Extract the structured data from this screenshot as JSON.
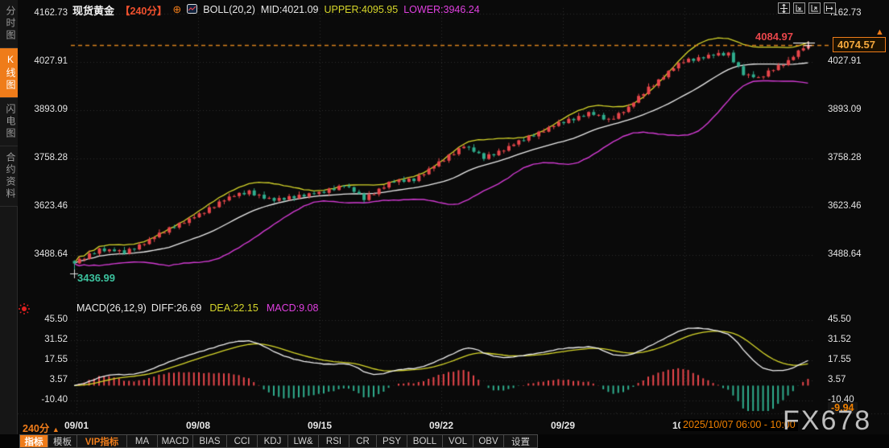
{
  "colors": {
    "up": "#e8464b",
    "down": "#2fae8e",
    "boll_up": "#d6d62a",
    "boll_mid": "#ececec",
    "boll_low": "#d43bd4",
    "grid": "#2f2f2f",
    "accent": "#ef7c1a",
    "dif_line": "#f0f0f0",
    "dea_line": "#d6d62a",
    "price_line": "#d9821e"
  },
  "sidebar": {
    "items": [
      {
        "label": "分时图",
        "name": "sidebar-tab-timeshare",
        "active": false
      },
      {
        "label": "K线图",
        "name": "sidebar-tab-kline",
        "active": true
      },
      {
        "label": "闪电图",
        "name": "sidebar-tab-lightning",
        "active": false
      },
      {
        "label": "合约资料",
        "name": "sidebar-tab-contract-info",
        "active": false
      }
    ]
  },
  "header": {
    "symbol": "现货黄金",
    "period": "【240分】",
    "add_icon": "⊕",
    "boll_label": "BOLL(20,2)",
    "mid": "MID:4021.09",
    "upper": "UPPER:4095.95",
    "lower": "LOWER:3946.24"
  },
  "markers": {
    "high": "4084.97",
    "low": "3436.99",
    "last_price": "4074.57",
    "price_arrow": "▲",
    "macd_last": "-9.94"
  },
  "macd_header": {
    "label": "MACD(26,12,9)",
    "diff": "DIFF:26.69",
    "dea": "DEA:22.15",
    "macd": "MACD:9.08"
  },
  "x_axis": {
    "period_label": "240分",
    "period_arrow": "▲",
    "labels": [
      "09/01",
      "09/08",
      "09/15",
      "09/22",
      "09/29",
      "10/0"
    ],
    "tooltip": "2025/10/07 06:00 - 10:00"
  },
  "watermark": "FX678",
  "toolbar": {
    "items": [
      {
        "label": "指标",
        "name": "toolbar-item-indicator",
        "style": "active",
        "width": 36
      },
      {
        "label": "模板",
        "name": "toolbar-item-template",
        "style": "plain",
        "width": 36
      },
      {
        "label": "VIP指标",
        "name": "toolbar-item-vip",
        "style": "vip",
        "width": 62
      },
      {
        "label": "MA",
        "name": "toolbar-item-ma",
        "style": "plain",
        "width": 38
      },
      {
        "label": "MACD",
        "name": "toolbar-item-macd",
        "style": "plain",
        "width": 44
      },
      {
        "label": "BIAS",
        "name": "toolbar-item-bias",
        "style": "plain",
        "width": 42
      },
      {
        "label": "CCI",
        "name": "toolbar-item-cci",
        "style": "plain",
        "width": 38
      },
      {
        "label": "KDJ",
        "name": "toolbar-item-kdj",
        "style": "plain",
        "width": 38
      },
      {
        "label": "LW&",
        "name": "toolbar-item-lwr",
        "style": "plain",
        "width": 38
      },
      {
        "label": "RSI",
        "name": "toolbar-item-rsi",
        "style": "plain",
        "width": 38
      },
      {
        "label": "CR",
        "name": "toolbar-item-cr",
        "style": "plain",
        "width": 34
      },
      {
        "label": "PSY",
        "name": "toolbar-item-psy",
        "style": "plain",
        "width": 38
      },
      {
        "label": "BOLL",
        "name": "toolbar-item-boll",
        "style": "plain",
        "width": 44
      },
      {
        "label": "VOL",
        "name": "toolbar-item-vol",
        "style": "plain",
        "width": 38
      },
      {
        "label": "OBV",
        "name": "toolbar-item-obv",
        "style": "plain",
        "width": 38
      },
      {
        "label": "设置",
        "name": "toolbar-item-settings",
        "style": "plain",
        "width": 42
      }
    ]
  },
  "chart_data": {
    "type": "candlestick",
    "title": "现货黄金 240分 K线图 + BOLL(20,2), 副图 MACD(26,12,9)",
    "y_axis": {
      "labels": [
        "4162.73",
        "4027.91",
        "3893.09",
        "3758.28",
        "3623.46",
        "3488.64"
      ],
      "top_value": 4162.73,
      "step_value": 134.82
    },
    "x_axis": {
      "labels": [
        "09/01",
        "09/08",
        "09/15",
        "09/22",
        "09/29",
        "10/0"
      ]
    },
    "key_values": {
      "session_high": 4084.97,
      "session_low": 3436.99,
      "last_close": 4074.57,
      "boll_mid": 4021.09,
      "boll_upper": 4095.95,
      "boll_lower": 3946.24,
      "macd_diff": 26.69,
      "macd_dea": 22.15,
      "macd_value": 9.08,
      "macd_axis_tag": -9.94
    },
    "candles": {
      "first_open": 3472,
      "closes": [
        3465,
        3473,
        3481,
        3489,
        3497,
        3505,
        3503,
        3501,
        3499,
        3497,
        3495,
        3502,
        3509,
        3516,
        3523,
        3530,
        3538,
        3546,
        3554,
        3562,
        3570,
        3576,
        3582,
        3588,
        3594,
        3600,
        3609,
        3618,
        3627,
        3636,
        3645,
        3649,
        3653,
        3657,
        3661,
        3665,
        3660,
        3655,
        3650,
        3645,
        3640,
        3643,
        3646,
        3649,
        3652,
        3655,
        3656,
        3658,
        3659,
        3660,
        3665,
        3670,
        3675,
        3680,
        3685,
        3675,
        3665,
        3655,
        3645,
        3654,
        3663,
        3672,
        3681,
        3690,
        3692,
        3694,
        3696,
        3698,
        3700,
        3709,
        3718,
        3727,
        3736,
        3745,
        3755,
        3765,
        3775,
        3785,
        3795,
        3786,
        3777,
        3768,
        3760,
        3766,
        3772,
        3778,
        3784,
        3790,
        3797,
        3804,
        3811,
        3818,
        3825,
        3831,
        3837,
        3843,
        3849,
        3855,
        3860,
        3865,
        3870,
        3875,
        3880,
        3885,
        3880,
        3875,
        3870,
        3865,
        3874,
        3883,
        3892,
        3900,
        3914,
        3928,
        3941,
        3955,
        3966,
        3977,
        3989,
        4000,
        4010,
        4020,
        4030,
        4033,
        4036,
        4039,
        4042,
        4045,
        4046,
        4048,
        4049,
        4050,
        4032,
        4014,
        3995,
        3990,
        3985,
        3980,
        3990,
        4000,
        4010,
        4017,
        4023,
        4030,
        4042,
        4055,
        4066,
        4074.57
      ],
      "wiggle": [
        0,
        5,
        -3,
        4,
        -5,
        2,
        -4,
        3
      ],
      "wick_high": [
        2,
        6,
        3,
        9,
        4,
        2,
        7
      ],
      "wick_low": [
        5,
        2,
        8,
        3,
        2,
        6,
        3
      ],
      "low_override": {
        "0": 3436.99
      },
      "high_override": {
        "147": 4084.97
      }
    },
    "overlays": {
      "boll": {
        "period": 20,
        "k": 2
      }
    },
    "sub_chart": {
      "type": "macd",
      "params": [
        26,
        12,
        9
      ],
      "y_labels": [
        "45.50",
        "31.52",
        "17.55",
        "3.57",
        "-10.40"
      ],
      "top_value": 45.5,
      "step_value": 13.975
    }
  }
}
